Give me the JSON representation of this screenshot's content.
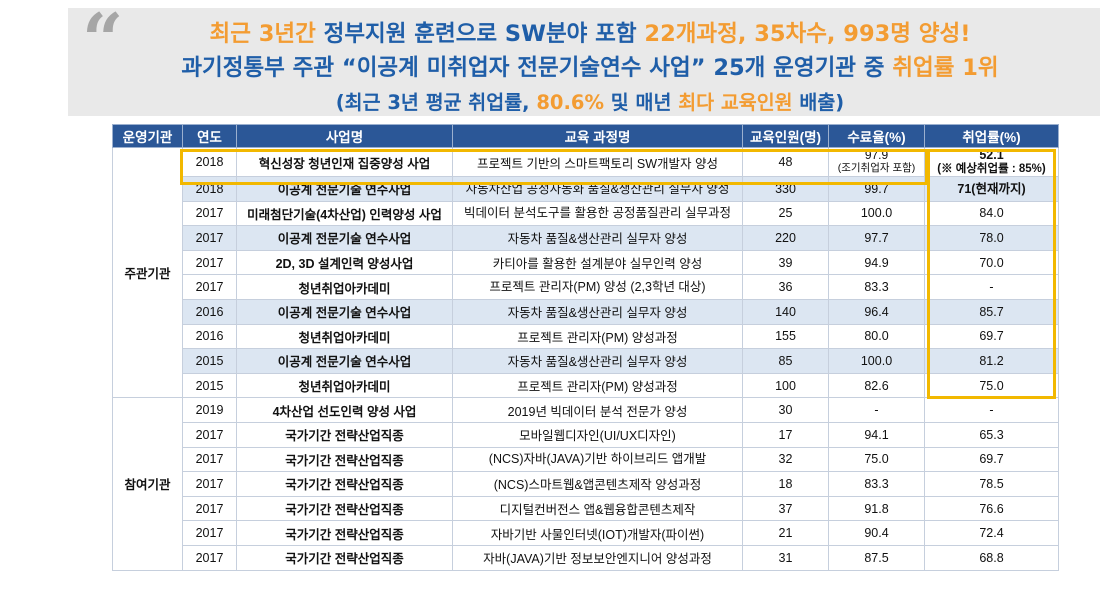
{
  "header": {
    "line1": [
      {
        "text": "최근 3년간 ",
        "color": "orange"
      },
      {
        "text": "정부지원 훈련으로 SW분야 포함 ",
        "color": "blue"
      },
      {
        "text": "22개과정, 35차수, 993명 양성!",
        "color": "orange"
      }
    ],
    "line2": [
      {
        "text": "과기정통부 주관 “이공계 미취업자 전문기술연수 사업” 25개 운영기관 중 ",
        "color": "blue"
      },
      {
        "text": "취업률 1위",
        "color": "orange"
      }
    ],
    "line3": [
      {
        "text": "(최근 3년 평균 취업률, ",
        "color": "blue"
      },
      {
        "text": "80.6%",
        "color": "orange"
      },
      {
        "text": " 및 매년 ",
        "color": "blue"
      },
      {
        "text": "최다 교육인원",
        "color": "orange"
      },
      {
        "text": " 배출)",
        "color": "blue"
      }
    ]
  },
  "colors": {
    "orange": "#f39c32",
    "blue": "#1f5ea8",
    "header_bg": "#2b5797",
    "highlight_box": "#f2b800",
    "red": "#e0201b"
  },
  "table": {
    "columns": [
      "운영기관",
      "연도",
      "사업명",
      "교육 과정명",
      "교육인원(명)",
      "수료율(%)",
      "취업률(%)"
    ],
    "groups": [
      {
        "name": "주관기관",
        "rows": [
          {
            "year": "2018",
            "program": "혁신성장 청년인재 집중양성 사업",
            "course": "프로젝트 기반의 스마트팩토리 SW개발자 양성",
            "people": "48",
            "completion": "97.9",
            "completion_note": "(조기취업자 포함)",
            "employment": "52.1",
            "employment_note": "(※ 예상취업률 : 85%)",
            "shade": false,
            "red": true
          },
          {
            "year": "2018",
            "program": "이공계 전문기술 연수사업",
            "course": "자동차산업 공정자동화 품질&생산관리 실무자 양성",
            "people": "330",
            "completion": "99.7",
            "employment": "71(현재까지)",
            "shade": true,
            "red": true
          },
          {
            "year": "2017",
            "program": "미래첨단기술(4차산업) 인력양성 사업",
            "course": "빅데이터 분석도구를 활용한 공정품질관리 실무과정",
            "people": "25",
            "completion": "100.0",
            "employment": "84.0",
            "shade": false
          },
          {
            "year": "2017",
            "program": "이공계 전문기술 연수사업",
            "course": "자동차 품질&생산관리 실무자 양성",
            "people": "220",
            "completion": "97.7",
            "employment": "78.0",
            "shade": true
          },
          {
            "year": "2017",
            "program": "2D, 3D 설계인력 양성사업",
            "course": "카티아를 활용한 설계분야 실무인력 양성",
            "people": "39",
            "completion": "94.9",
            "employment": "70.0",
            "shade": false
          },
          {
            "year": "2017",
            "program": "청년취업아카데미",
            "course": "프로젝트 관리자(PM) 양성 (2,3학년 대상)",
            "people": "36",
            "completion": "83.3",
            "employment": "-",
            "shade": false
          },
          {
            "year": "2016",
            "program": "이공계 전문기술 연수사업",
            "course": "자동차 품질&생산관리 실무자 양성",
            "people": "140",
            "completion": "96.4",
            "employment": "85.7",
            "shade": true
          },
          {
            "year": "2016",
            "program": "청년취업아카데미",
            "course": "프로젝트 관리자(PM) 양성과정",
            "people": "155",
            "completion": "80.0",
            "employment": "69.7",
            "shade": false
          },
          {
            "year": "2015",
            "program": "이공계 전문기술 연수사업",
            "course": "자동차 품질&생산관리 실무자 양성",
            "people": "85",
            "completion": "100.0",
            "employment": "81.2",
            "shade": true
          },
          {
            "year": "2015",
            "program": "청년취업아카데미",
            "course": "프로젝트 관리자(PM) 양성과정",
            "people": "100",
            "completion": "82.6",
            "employment": "75.0",
            "shade": false
          }
        ]
      },
      {
        "name": "참여기관",
        "rows": [
          {
            "year": "2019",
            "program": "4차산업  선도인력 양성 사업",
            "course": "2019년 빅데이터 분석 전문가 양성",
            "people": "30",
            "completion": "-",
            "employment": "-",
            "shade": false
          },
          {
            "year": "2017",
            "program": "국가기간 전략산업직종",
            "course": "모바일웹디자인(UI/UX디자인)",
            "people": "17",
            "completion": "94.1",
            "employment": "65.3",
            "shade": false
          },
          {
            "year": "2017",
            "program": "국가기간 전략산업직종",
            "course": "(NCS)자바(JAVA)기반 하이브리드 앱개발",
            "people": "32",
            "completion": "75.0",
            "employment": "69.7",
            "shade": false
          },
          {
            "year": "2017",
            "program": "국가기간 전략산업직종",
            "course": "(NCS)스마트웹&앱콘텐츠제작 양성과정",
            "people": "18",
            "completion": "83.3",
            "employment": "78.5",
            "shade": false
          },
          {
            "year": "2017",
            "program": "국가기간 전략산업직종",
            "course": "디지털컨버전스 앱&웹융합콘텐츠제작",
            "people": "37",
            "completion": "91.8",
            "employment": "76.6",
            "shade": false
          },
          {
            "year": "2017",
            "program": "국가기간 전략산업직종",
            "course": "자바기반 사물인터넷(IOT)개발자(파이썬)",
            "people": "21",
            "completion": "90.4",
            "employment": "72.4",
            "shade": false
          },
          {
            "year": "2017",
            "program": "국가기간 전략산업직종",
            "course": "자바(JAVA)기반 정보보안엔지니어 양성과정",
            "people": "31",
            "completion": "87.5",
            "employment": "68.8",
            "shade": false
          }
        ]
      }
    ]
  }
}
